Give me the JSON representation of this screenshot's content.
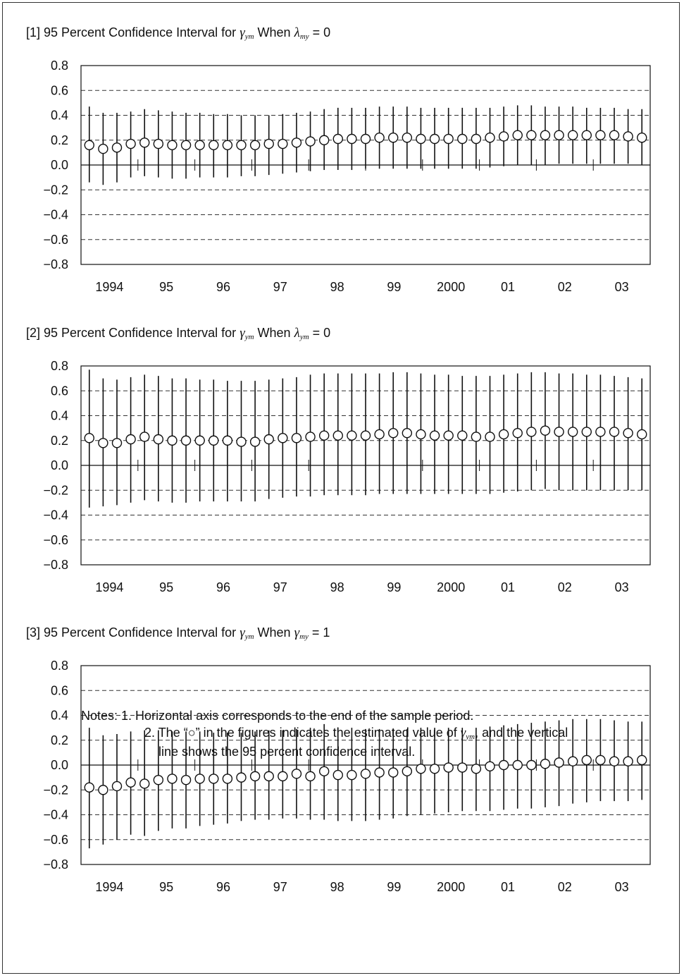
{
  "notes": {
    "label": "Notes:",
    "note1": "1. Horizontal axis corresponds to the end of the sample period.",
    "note2_a": "2. The “○” in the figures indicates the estimated value of",
    "note2_sym": "γ",
    "note2_sub": "ym",
    "note2_b": ", and the vertical",
    "note2_c": "line shows the 95 percent confidence interval."
  },
  "chart_data": [
    {
      "type": "scatter",
      "title_prefix": "[1] 95 Percent Confidence Interval for",
      "title_sym1": "γ",
      "title_sub1": "ym",
      "title_mid": "When",
      "title_sym2": "λ",
      "title_sub2": "my",
      "title_suffix": "= 0",
      "ylim": [
        -0.8,
        0.8
      ],
      "yticks": [
        "0.8",
        "0.6",
        "0.4",
        "0.2",
        "0.0",
        "−0.2",
        "−0.4",
        "−0.6",
        "−0.8"
      ],
      "xticks": [
        "1994",
        "95",
        "96",
        "97",
        "98",
        "99",
        "2000",
        "01",
        "02",
        "03"
      ],
      "grid": "dashed horizontal",
      "estimate": [
        0.16,
        0.13,
        0.14,
        0.17,
        0.18,
        0.17,
        0.16,
        0.16,
        0.16,
        0.16,
        0.16,
        0.16,
        0.16,
        0.17,
        0.17,
        0.18,
        0.19,
        0.2,
        0.21,
        0.21,
        0.21,
        0.22,
        0.22,
        0.22,
        0.21,
        0.21,
        0.21,
        0.21,
        0.21,
        0.22,
        0.23,
        0.24,
        0.24,
        0.24,
        0.24,
        0.24,
        0.24,
        0.24,
        0.24,
        0.23,
        0.22
      ],
      "upper": [
        0.47,
        0.42,
        0.42,
        0.43,
        0.45,
        0.44,
        0.43,
        0.42,
        0.42,
        0.41,
        0.41,
        0.4,
        0.4,
        0.4,
        0.41,
        0.42,
        0.43,
        0.45,
        0.46,
        0.46,
        0.46,
        0.47,
        0.47,
        0.47,
        0.46,
        0.46,
        0.46,
        0.46,
        0.46,
        0.46,
        0.47,
        0.48,
        0.48,
        0.47,
        0.47,
        0.47,
        0.46,
        0.46,
        0.46,
        0.45,
        0.45
      ],
      "lower": [
        -0.14,
        -0.16,
        -0.14,
        -0.1,
        -0.09,
        -0.1,
        -0.11,
        -0.11,
        -0.1,
        -0.1,
        -0.1,
        -0.09,
        -0.09,
        -0.08,
        -0.07,
        -0.06,
        -0.05,
        -0.04,
        -0.04,
        -0.04,
        -0.03,
        -0.03,
        -0.03,
        -0.03,
        -0.03,
        -0.03,
        -0.03,
        -0.03,
        -0.03,
        -0.02,
        -0.01,
        0,
        0,
        0,
        0.01,
        0.01,
        0.01,
        0.01,
        0.01,
        0.01,
        0
      ]
    },
    {
      "type": "scatter",
      "title_prefix": "[2] 95 Percent Confidence Interval for",
      "title_sym1": "γ",
      "title_sub1": "ym",
      "title_mid": "When",
      "title_sym2": "λ",
      "title_sub2": "ym",
      "title_suffix": "= 0",
      "ylim": [
        -0.8,
        0.8
      ],
      "yticks": [
        "0.8",
        "0.6",
        "0.4",
        "0.2",
        "0.0",
        "−0.2",
        "−0.4",
        "−0.6",
        "−0.8"
      ],
      "xticks": [
        "1994",
        "95",
        "96",
        "97",
        "98",
        "99",
        "2000",
        "01",
        "02",
        "03"
      ],
      "grid": "dashed horizontal",
      "estimate": [
        0.22,
        0.18,
        0.18,
        0.21,
        0.23,
        0.21,
        0.2,
        0.2,
        0.2,
        0.2,
        0.2,
        0.19,
        0.19,
        0.21,
        0.22,
        0.22,
        0.23,
        0.24,
        0.24,
        0.24,
        0.24,
        0.25,
        0.26,
        0.26,
        0.25,
        0.24,
        0.24,
        0.24,
        0.23,
        0.23,
        0.25,
        0.26,
        0.27,
        0.28,
        0.27,
        0.27,
        0.27,
        0.27,
        0.27,
        0.26,
        0.25
      ],
      "upper": [
        0.77,
        0.7,
        0.69,
        0.71,
        0.73,
        0.72,
        0.7,
        0.7,
        0.69,
        0.69,
        0.68,
        0.68,
        0.68,
        0.69,
        0.7,
        0.71,
        0.73,
        0.74,
        0.74,
        0.74,
        0.74,
        0.74,
        0.75,
        0.75,
        0.74,
        0.73,
        0.73,
        0.72,
        0.72,
        0.72,
        0.73,
        0.74,
        0.75,
        0.75,
        0.74,
        0.74,
        0.73,
        0.73,
        0.72,
        0.71,
        0.7
      ],
      "lower": [
        -0.34,
        -0.33,
        -0.32,
        -0.3,
        -0.28,
        -0.29,
        -0.3,
        -0.3,
        -0.29,
        -0.29,
        -0.29,
        -0.29,
        -0.29,
        -0.27,
        -0.26,
        -0.25,
        -0.25,
        -0.24,
        -0.24,
        -0.24,
        -0.24,
        -0.23,
        -0.23,
        -0.23,
        -0.23,
        -0.23,
        -0.23,
        -0.23,
        -0.23,
        -0.23,
        -0.22,
        -0.21,
        -0.2,
        -0.19,
        -0.2,
        -0.2,
        -0.2,
        -0.2,
        -0.2,
        -0.2,
        -0.2
      ]
    },
    {
      "type": "scatter",
      "title_prefix": "[3] 95 Percent Confidence Interval for",
      "title_sym1": "γ",
      "title_sub1": "ym",
      "title_mid": "When",
      "title_sym2": "γ",
      "title_sub2": "my",
      "title_suffix": "= 1",
      "ylim": [
        -0.8,
        0.8
      ],
      "yticks": [
        "0.8",
        "0.6",
        "0.4",
        "0.2",
        "0.0",
        "−0.2",
        "−0.4",
        "−0.6",
        "−0.8"
      ],
      "xticks": [
        "1994",
        "95",
        "96",
        "97",
        "98",
        "99",
        "2000",
        "01",
        "02",
        "03"
      ],
      "grid": "dashed horizontal",
      "estimate": [
        -0.18,
        -0.2,
        -0.17,
        -0.14,
        -0.15,
        -0.12,
        -0.11,
        -0.12,
        -0.11,
        -0.11,
        -0.11,
        -0.1,
        -0.09,
        -0.09,
        -0.09,
        -0.07,
        -0.09,
        -0.05,
        -0.08,
        -0.08,
        -0.07,
        -0.06,
        -0.06,
        -0.05,
        -0.03,
        -0.03,
        -0.02,
        -0.02,
        -0.03,
        -0.01,
        0,
        0,
        0,
        0.01,
        0.02,
        0.03,
        0.04,
        0.04,
        0.03,
        0.03,
        0.04
      ],
      "upper": [
        0.3,
        0.24,
        0.25,
        0.27,
        0.28,
        0.28,
        0.27,
        0.27,
        0.27,
        0.26,
        0.26,
        0.26,
        0.27,
        0.28,
        0.28,
        0.29,
        0.3,
        0.33,
        0.3,
        0.3,
        0.29,
        0.29,
        0.29,
        0.29,
        0.3,
        0.3,
        0.3,
        0.3,
        0.3,
        0.31,
        0.32,
        0.33,
        0.34,
        0.35,
        0.36,
        0.37,
        0.37,
        0.37,
        0.36,
        0.35,
        0.35
      ],
      "lower": [
        -0.67,
        -0.64,
        -0.6,
        -0.56,
        -0.57,
        -0.53,
        -0.51,
        -0.51,
        -0.49,
        -0.48,
        -0.47,
        -0.45,
        -0.44,
        -0.44,
        -0.43,
        -0.43,
        -0.44,
        -0.44,
        -0.45,
        -0.45,
        -0.45,
        -0.44,
        -0.43,
        -0.41,
        -0.4,
        -0.39,
        -0.38,
        -0.37,
        -0.37,
        -0.37,
        -0.36,
        -0.35,
        -0.35,
        -0.34,
        -0.33,
        -0.31,
        -0.3,
        -0.29,
        -0.29,
        -0.29,
        -0.28
      ]
    }
  ]
}
